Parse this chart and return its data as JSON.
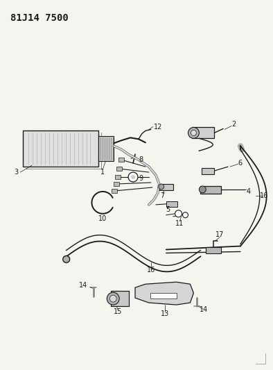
{
  "title": "81J14 7500",
  "bg_color": "#f5f5f0",
  "line_color": "#1a1a1a",
  "title_fontsize": 10,
  "fig_width": 3.94,
  "fig_height": 5.33,
  "dpi": 100
}
